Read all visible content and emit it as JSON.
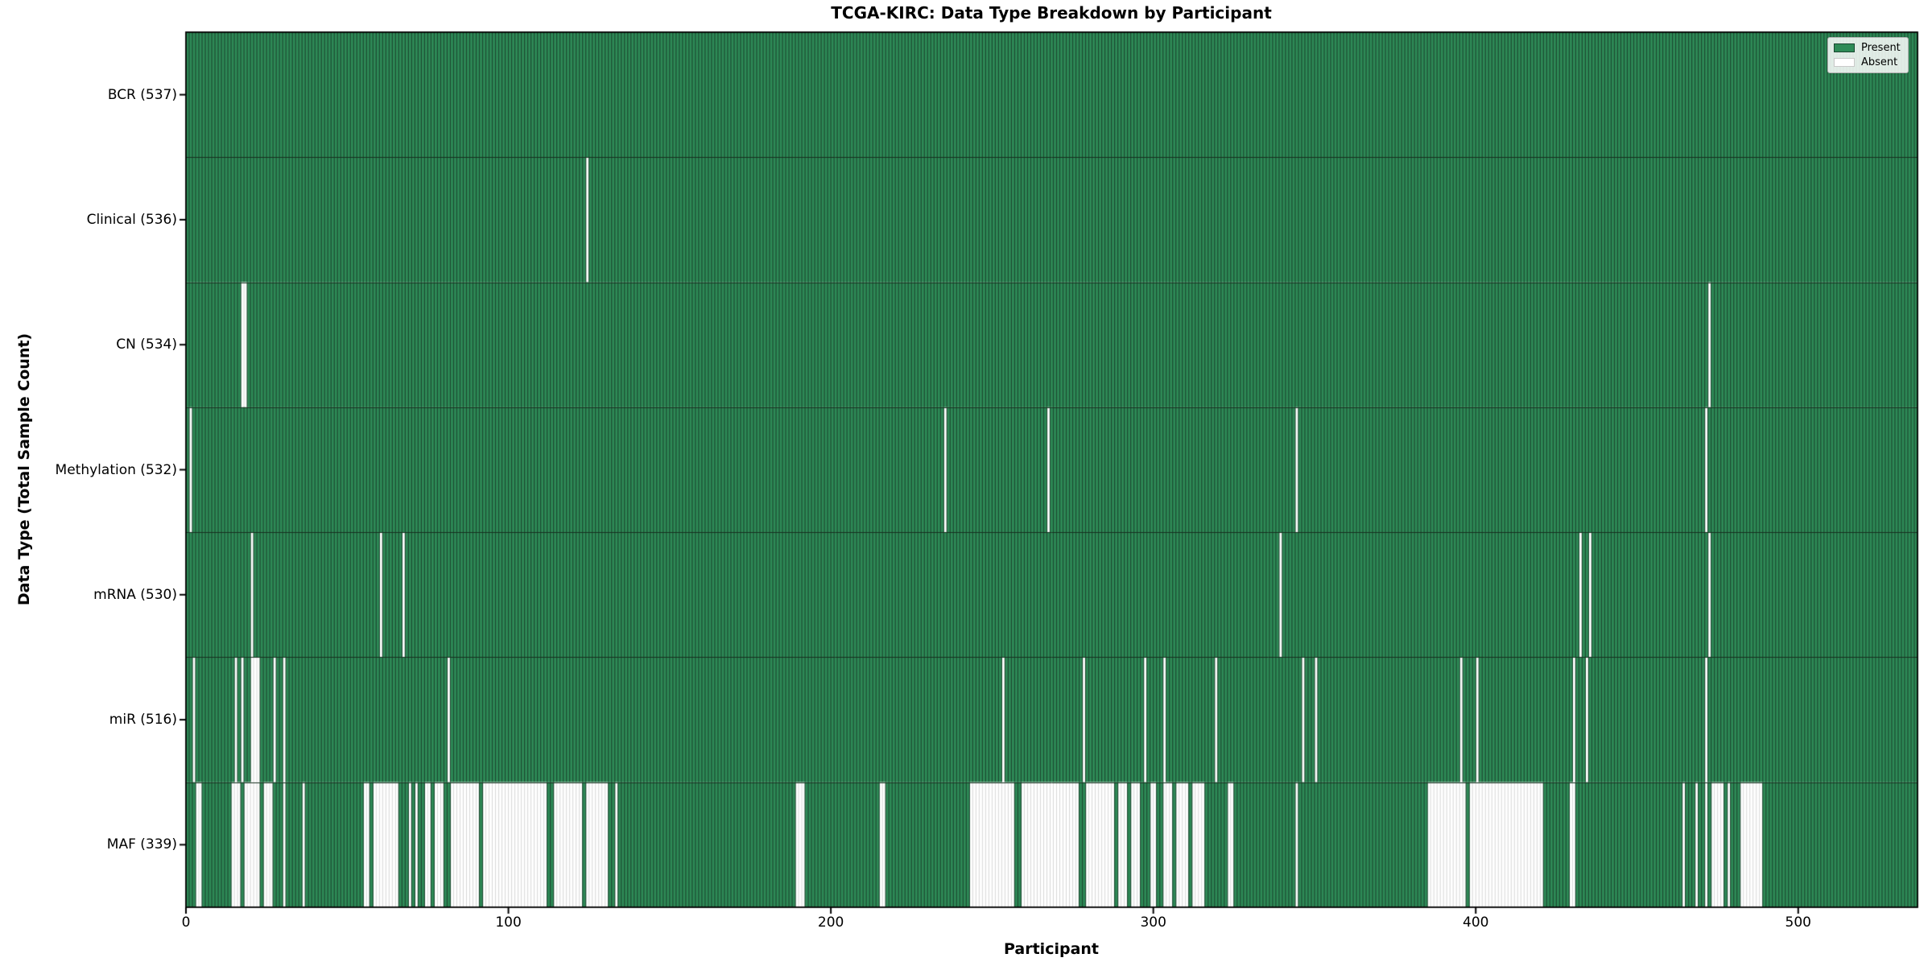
{
  "figure": {
    "title": "TCGA-KIRC: Data Type Breakdown by Participant"
  },
  "chart_data": {
    "type": "heatmap",
    "title": "TCGA-KIRC: Data Type Breakdown by Participant",
    "xlabel": "Participant",
    "ylabel": "Data Type (Total Sample Count)",
    "x_ticks": [
      0,
      100,
      200,
      300,
      400,
      500
    ],
    "x_range": [
      0,
      537
    ],
    "n_participants": 537,
    "grid": false,
    "legend": {
      "position": "upper right",
      "entries": [
        {
          "label": "Present",
          "color": "#2e8b57"
        },
        {
          "label": "Absent",
          "color": "#ffffff"
        }
      ]
    },
    "colors": {
      "present_fill": "#2e8b57",
      "present_edge": "#1c4a31",
      "absent_fill": "#ffffff",
      "absent_edge": "#d8d8d8",
      "row_separator": "#16301f",
      "spine": "#000000"
    },
    "rows": [
      {
        "label": "BCR",
        "total": 537,
        "tick_label": "BCR (537)",
        "absent_ranges": []
      },
      {
        "label": "Clinical",
        "total": 536,
        "tick_label": "Clinical (536)",
        "absent_ranges": [
          [
            124,
            124
          ]
        ]
      },
      {
        "label": "CN",
        "total": 534,
        "tick_label": "CN (534)",
        "absent_ranges": [
          [
            17,
            18
          ],
          [
            472,
            472
          ]
        ]
      },
      {
        "label": "Methylation",
        "total": 532,
        "tick_label": "Methylation (532)",
        "absent_ranges": [
          [
            1,
            1
          ],
          [
            235,
            235
          ],
          [
            267,
            267
          ],
          [
            344,
            344
          ],
          [
            471,
            471
          ]
        ]
      },
      {
        "label": "mRNA",
        "total": 530,
        "tick_label": "mRNA (530)",
        "absent_ranges": [
          [
            20,
            20
          ],
          [
            60,
            60
          ],
          [
            67,
            67
          ],
          [
            339,
            339
          ],
          [
            432,
            432
          ],
          [
            435,
            435
          ],
          [
            472,
            472
          ]
        ]
      },
      {
        "label": "miR",
        "total": 516,
        "tick_label": "miR (516)",
        "absent_ranges": [
          [
            2,
            2
          ],
          [
            15,
            15
          ],
          [
            17,
            17
          ],
          [
            20,
            22
          ],
          [
            27,
            27
          ],
          [
            30,
            30
          ],
          [
            81,
            81
          ],
          [
            253,
            253
          ],
          [
            278,
            278
          ],
          [
            297,
            297
          ],
          [
            303,
            303
          ],
          [
            319,
            319
          ],
          [
            346,
            346
          ],
          [
            350,
            350
          ],
          [
            395,
            395
          ],
          [
            400,
            400
          ],
          [
            430,
            430
          ],
          [
            434,
            434
          ],
          [
            471,
            471
          ]
        ]
      },
      {
        "label": "MAF",
        "total": 339,
        "tick_label": "MAF (339)",
        "absent_ranges": [
          [
            3,
            4
          ],
          [
            14,
            16
          ],
          [
            18,
            22
          ],
          [
            24,
            26
          ],
          [
            30,
            30
          ],
          [
            36,
            36
          ],
          [
            55,
            56
          ],
          [
            58,
            65
          ],
          [
            69,
            69
          ],
          [
            71,
            71
          ],
          [
            74,
            75
          ],
          [
            77,
            79
          ],
          [
            82,
            90
          ],
          [
            92,
            111
          ],
          [
            114,
            122
          ],
          [
            124,
            130
          ],
          [
            133,
            133
          ],
          [
            189,
            191
          ],
          [
            215,
            216
          ],
          [
            243,
            256
          ],
          [
            259,
            276
          ],
          [
            279,
            287
          ],
          [
            289,
            291
          ],
          [
            293,
            295
          ],
          [
            299,
            300
          ],
          [
            303,
            305
          ],
          [
            307,
            310
          ],
          [
            312,
            315
          ],
          [
            323,
            324
          ],
          [
            344,
            344
          ],
          [
            385,
            396
          ],
          [
            398,
            420
          ],
          [
            429,
            430
          ],
          [
            464,
            464
          ],
          [
            468,
            468
          ],
          [
            471,
            471
          ],
          [
            473,
            476
          ],
          [
            478,
            478
          ],
          [
            482,
            488
          ]
        ]
      }
    ]
  }
}
